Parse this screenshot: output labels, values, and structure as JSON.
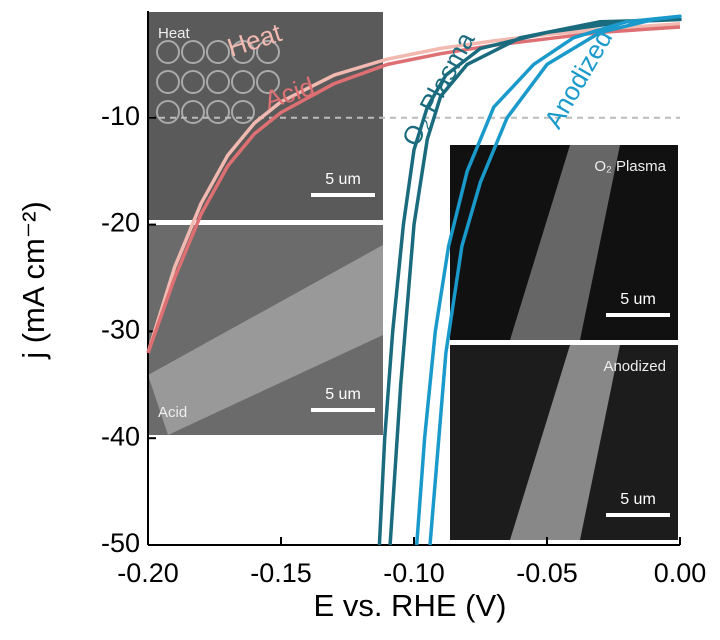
{
  "chart_data": {
    "type": "line",
    "xlabel": "E vs. RHE (V)",
    "ylabel": "j (mA cm⁻²)",
    "xlim": [
      -0.2,
      0.0
    ],
    "ylim": [
      -50,
      0
    ],
    "xticks": [
      {
        "value": -0.2,
        "label": "-0.20"
      },
      {
        "value": -0.15,
        "label": "-0.15"
      },
      {
        "value": -0.1,
        "label": "-0.10"
      },
      {
        "value": -0.05,
        "label": "-0.05"
      },
      {
        "value": 0.0,
        "label": "0.00"
      }
    ],
    "yticks": [
      -10,
      -20,
      -30,
      -40,
      -50
    ],
    "reference_line": -10,
    "series": [
      {
        "name": "Heat",
        "color": "#f2b9b1",
        "x": [
          -0.2,
          -0.19,
          -0.18,
          -0.17,
          -0.16,
          -0.15,
          -0.13,
          -0.11,
          -0.09,
          -0.07,
          -0.05,
          -0.03,
          0.0
        ],
        "values": [
          -32,
          -24,
          -18,
          -13.5,
          -10.5,
          -8.5,
          -6,
          -4.5,
          -3.5,
          -2.8,
          -2.2,
          -1.7,
          -1.2
        ]
      },
      {
        "name": "Acid",
        "color": "#de6f72",
        "x": [
          -0.2,
          -0.19,
          -0.18,
          -0.17,
          -0.16,
          -0.15,
          -0.13,
          -0.11,
          -0.09,
          -0.07,
          -0.05,
          -0.03,
          0.0
        ],
        "values": [
          -32,
          -25,
          -19,
          -14.5,
          -11.5,
          -9.5,
          -6.8,
          -5,
          -4,
          -3.2,
          -2.6,
          -2,
          -1.5
        ]
      },
      {
        "name": "O₂ Plasma",
        "color": "#1b6b7f",
        "x": [
          -0.113,
          -0.111,
          -0.108,
          -0.104,
          -0.1,
          -0.095,
          -0.088,
          -0.075,
          -0.05,
          -0.02,
          0.0,
          -0.03,
          -0.06,
          -0.08,
          -0.09,
          -0.095,
          -0.1,
          -0.105,
          -0.109
        ],
        "values": [
          -50,
          -40,
          -30,
          -20,
          -13,
          -9,
          -6,
          -3.5,
          -2,
          -1,
          -0.8,
          -1,
          -2.5,
          -5,
          -8,
          -12,
          -20,
          -35,
          -50
        ]
      },
      {
        "name": "Anodized",
        "color": "#1a9acb",
        "x": [
          -0.099,
          -0.096,
          -0.092,
          -0.087,
          -0.08,
          -0.07,
          -0.055,
          -0.04,
          -0.02,
          0.0,
          -0.01,
          -0.03,
          -0.05,
          -0.065,
          -0.075,
          -0.082,
          -0.088,
          -0.094
        ],
        "values": [
          -50,
          -40,
          -30,
          -22,
          -15,
          -9,
          -5,
          -2.5,
          -1,
          -0.5,
          -0.8,
          -2,
          -5,
          -10,
          -16,
          -22,
          -32,
          -50
        ]
      }
    ],
    "insets": [
      {
        "label": "Heat",
        "scale": "5 um"
      },
      {
        "label": "Acid",
        "scale": "5 um"
      },
      {
        "label": "O₂ Plasma",
        "scale": "5 um"
      },
      {
        "label": "Anodized",
        "scale": "5 um"
      }
    ]
  }
}
